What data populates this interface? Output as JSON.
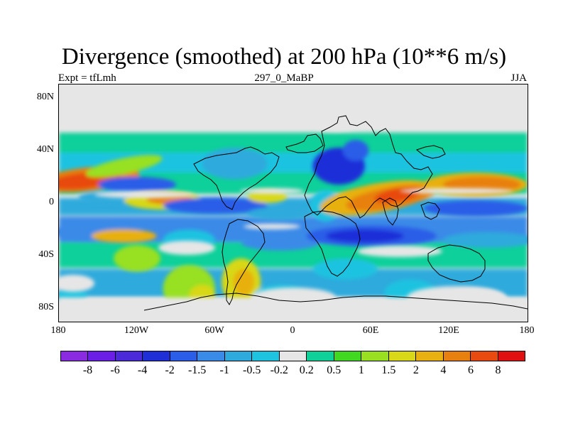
{
  "title": "Divergence (smoothed) at 200 hPa (10**6 m/s)",
  "subtitle_left": "Expt = tfLmh",
  "subtitle_center": "297_0_MaBP",
  "subtitle_right": "JJA",
  "y_ticks": [
    {
      "label": "80N",
      "lat": 80
    },
    {
      "label": "40N",
      "lat": 40
    },
    {
      "label": "0",
      "lat": 0
    },
    {
      "label": "40S",
      "lat": -40
    },
    {
      "label": "80S",
      "lat": -80
    }
  ],
  "x_ticks": [
    {
      "label": "180",
      "lon": -180
    },
    {
      "label": "120W",
      "lon": -120
    },
    {
      "label": "60W",
      "lon": -60
    },
    {
      "label": "0",
      "lon": 0
    },
    {
      "label": "60E",
      "lon": 60
    },
    {
      "label": "120E",
      "lon": 120
    },
    {
      "label": "180",
      "lon": 180
    }
  ],
  "extent": {
    "lon_min": -180,
    "lon_max": 180,
    "lat_min": -90,
    "lat_max": 90
  },
  "colorbar": {
    "colors": [
      "#8a2be2",
      "#6b1ee6",
      "#4b2ad9",
      "#1e2fd8",
      "#2a5de8",
      "#3a8ae8",
      "#2eaadc",
      "#1ec3e0",
      "#e6e6e6",
      "#10d09a",
      "#40d820",
      "#98e020",
      "#d8d818",
      "#e8b010",
      "#e88010",
      "#e84a10",
      "#e01010"
    ],
    "labels": [
      "-8",
      "-6",
      "-4",
      "-2",
      "-1.5",
      "-1",
      "-0.5",
      "-0.2",
      "0.2",
      "0.5",
      "1",
      "1.5",
      "2",
      "4",
      "6",
      "8"
    ]
  },
  "field_patches": [
    {
      "lon": -158,
      "lat": 18,
      "rx": 40,
      "ry": 9,
      "v": 4,
      "ang": -6
    },
    {
      "lon": -160,
      "lat": 17,
      "rx": 28,
      "ry": 6,
      "v": 6,
      "ang": -6
    },
    {
      "lon": -130,
      "lat": 28,
      "rx": 30,
      "ry": 6,
      "v": 1,
      "ang": -12
    },
    {
      "lon": -120,
      "lat": 14,
      "rx": 30,
      "ry": 6,
      "v": -2,
      "ang": 0
    },
    {
      "lon": -140,
      "lat": 4,
      "rx": 25,
      "ry": 5,
      "v": -1,
      "ang": 0
    },
    {
      "lon": -100,
      "lat": 2,
      "rx": 30,
      "ry": 7,
      "v": 1.5,
      "ang": 0
    },
    {
      "lon": -95,
      "lat": 3,
      "rx": 18,
      "ry": 4,
      "v": 4,
      "ang": 0
    },
    {
      "lon": -60,
      "lat": -2,
      "rx": 40,
      "ry": 6,
      "v": -2,
      "ang": 0
    },
    {
      "lon": -45,
      "lat": 30,
      "rx": 25,
      "ry": 12,
      "v": -1,
      "ang": 0
    },
    {
      "lon": -20,
      "lat": 5,
      "rx": 15,
      "ry": 5,
      "v": 1.5,
      "ang": 0
    },
    {
      "lon": -10,
      "lat": -8,
      "rx": 25,
      "ry": 5,
      "v": -1,
      "ang": 0
    },
    {
      "lon": 25,
      "lat": -2,
      "rx": 12,
      "ry": 12,
      "v": -0.5,
      "ang": 0
    },
    {
      "lon": 35,
      "lat": 28,
      "rx": 20,
      "ry": 14,
      "v": -4,
      "ang": 0
    },
    {
      "lon": 48,
      "lat": 40,
      "rx": 10,
      "ry": 8,
      "v": -2,
      "ang": 0
    },
    {
      "lon": 65,
      "lat": 4,
      "rx": 45,
      "ry": 11,
      "v": 2,
      "ang": -10
    },
    {
      "lon": 75,
      "lat": 4,
      "rx": 35,
      "ry": 8,
      "v": 4,
      "ang": -10
    },
    {
      "lon": 80,
      "lat": 6,
      "rx": 18,
      "ry": 5,
      "v": 6,
      "ang": -10
    },
    {
      "lon": 140,
      "lat": 14,
      "rx": 40,
      "ry": 9,
      "v": 2,
      "ang": 0
    },
    {
      "lon": 145,
      "lat": 14,
      "rx": 30,
      "ry": 6,
      "v": 4,
      "ang": 0
    },
    {
      "lon": 140,
      "lat": -4,
      "rx": 40,
      "ry": 6,
      "v": -2,
      "ang": 0
    },
    {
      "lon": -150,
      "lat": -22,
      "rx": 35,
      "ry": 6,
      "v": -1.5,
      "ang": 0
    },
    {
      "lon": -130,
      "lat": -25,
      "rx": 25,
      "ry": 5,
      "v": 2,
      "ang": 0
    },
    {
      "lon": -120,
      "lat": -42,
      "rx": 18,
      "ry": 10,
      "v": 1,
      "ang": 0
    },
    {
      "lon": -80,
      "lat": -28,
      "rx": 20,
      "ry": 8,
      "v": -0.5,
      "ang": 0
    },
    {
      "lon": -10,
      "lat": -30,
      "rx": 30,
      "ry": 6,
      "v": -1.5,
      "ang": 0
    },
    {
      "lon": 60,
      "lat": -25,
      "rx": 50,
      "ry": 8,
      "v": -2,
      "ang": 0
    },
    {
      "lon": 55,
      "lat": -25,
      "rx": 30,
      "ry": 5,
      "v": -4,
      "ang": 0
    },
    {
      "lon": 150,
      "lat": -28,
      "rx": 35,
      "ry": 6,
      "v": -1,
      "ang": 0
    },
    {
      "lon": -80,
      "lat": -65,
      "rx": 20,
      "ry": 18,
      "v": 1,
      "ang": 0
    },
    {
      "lon": -70,
      "lat": -70,
      "rx": 10,
      "ry": 8,
      "v": 1.5,
      "ang": 0
    },
    {
      "lon": -40,
      "lat": -60,
      "rx": 15,
      "ry": 18,
      "v": 1.5,
      "ang": 0
    },
    {
      "lon": -38,
      "lat": -60,
      "rx": 8,
      "ry": 10,
      "v": 2,
      "ang": 0
    },
    {
      "lon": -10,
      "lat": -70,
      "rx": 20,
      "ry": 8,
      "v": -0.5,
      "ang": 0
    },
    {
      "lon": 40,
      "lat": -50,
      "rx": 25,
      "ry": 8,
      "v": -0.5,
      "ang": 0
    },
    {
      "lon": 90,
      "lat": -68,
      "rx": 20,
      "ry": 10,
      "v": -0.5,
      "ang": 0
    },
    {
      "lon": 140,
      "lat": -75,
      "rx": 25,
      "ry": 10,
      "v": -0.2,
      "ang": 0
    },
    {
      "lon": -170,
      "lat": -70,
      "rx": 12,
      "ry": 5,
      "v": -0.5,
      "ang": 0
    }
  ]
}
